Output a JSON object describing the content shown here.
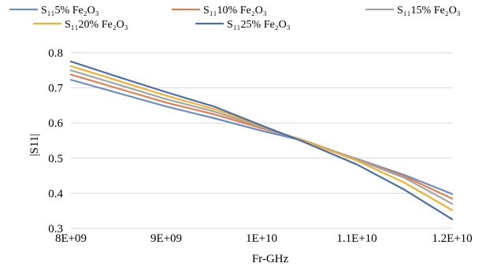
{
  "chart_data": {
    "type": "line",
    "title": "",
    "xlabel": "Fr-GHz",
    "ylabel": "|S11|",
    "x": [
      8000000000,
      8500000000,
      9000000000,
      9500000000,
      10000000000,
      10400000000,
      11000000000,
      11500000000,
      12000000000
    ],
    "x_tick_labels": [
      "8E+09",
      "9E+09",
      "1E+10",
      "1.1E+10",
      "1.2E+10"
    ],
    "x_ticks": [
      8000000000,
      9000000000,
      10000000000,
      11000000000,
      12000000000
    ],
    "xlim": [
      8000000000,
      12000000000
    ],
    "y_tick_labels": [
      "0.3",
      "0.4",
      "0.5",
      "0.6",
      "0.7",
      "0.8"
    ],
    "y_ticks": [
      0.3,
      0.4,
      0.5,
      0.6,
      0.7,
      0.8
    ],
    "ylim": [
      0.3,
      0.8
    ],
    "grid": "horizontal",
    "legend_position": "top",
    "series": [
      {
        "name": "S₁₁5% Fe₂O₃",
        "color": "#6f8fc4",
        "values": [
          0.723,
          0.685,
          0.647,
          0.614,
          0.578,
          0.552,
          0.498,
          0.452,
          0.398
        ]
      },
      {
        "name": "S₁₁10% Fe₂O₃",
        "color": "#e0814f",
        "values": [
          0.738,
          0.698,
          0.658,
          0.625,
          0.585,
          0.555,
          0.497,
          0.448,
          0.385
        ]
      },
      {
        "name": "S₁₁15% Fe₂O₃",
        "color": "#a5a5a5",
        "values": [
          0.75,
          0.709,
          0.668,
          0.633,
          0.588,
          0.554,
          0.496,
          0.444,
          0.37
        ]
      },
      {
        "name": "S₁₁20% Fe₂O₃",
        "color": "#f2b230",
        "values": [
          0.762,
          0.72,
          0.678,
          0.64,
          0.591,
          0.553,
          0.493,
          0.43,
          0.352
        ]
      },
      {
        "name": "S₁₁25% Fe₂O₃",
        "color": "#4a6eb0",
        "values": [
          0.775,
          0.731,
          0.688,
          0.647,
          0.593,
          0.551,
          0.482,
          0.41,
          0.326
        ]
      }
    ]
  }
}
